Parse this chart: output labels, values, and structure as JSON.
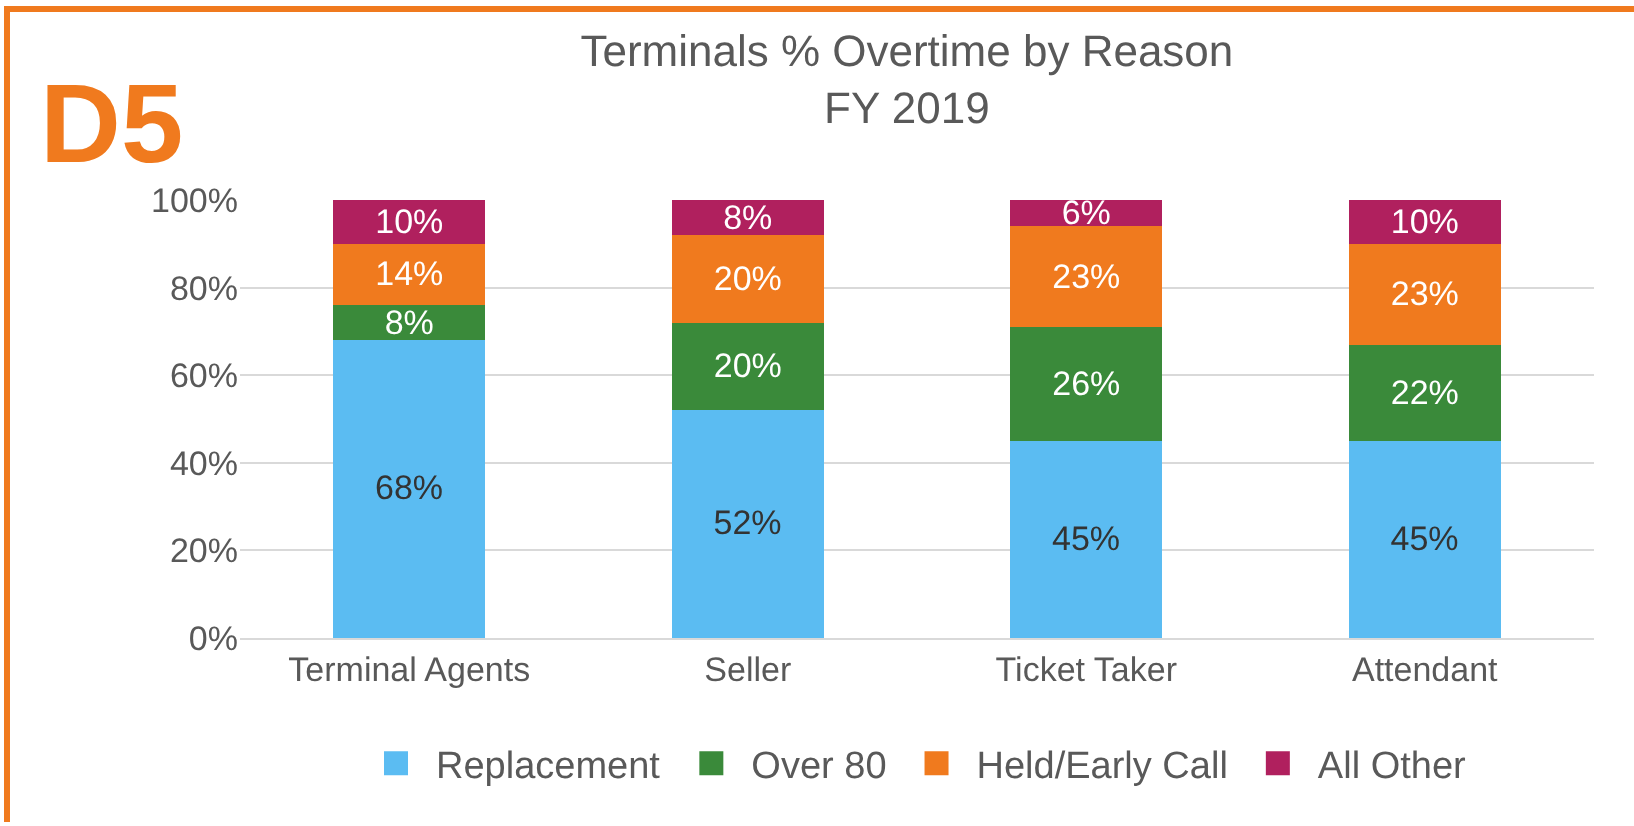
{
  "chart_data": {
    "type": "bar",
    "stacked": true,
    "title": "Terminals % Overtime by Reason",
    "subtitle": "FY 2019",
    "annotations": [
      "D5"
    ],
    "categories": [
      "Terminal Agents",
      "Seller",
      "Ticket Taker",
      "Attendant"
    ],
    "series": [
      {
        "name": "Replacement",
        "color": "#5bbcf2",
        "values": [
          68,
          52,
          45,
          45
        ],
        "value_labels": [
          "68%",
          "52%",
          "45%",
          "45%"
        ]
      },
      {
        "name": "Over 80",
        "color": "#3a8a3a",
        "values": [
          8,
          20,
          26,
          22
        ],
        "value_labels": [
          "8%",
          "20%",
          "26%",
          "22%"
        ]
      },
      {
        "name": "Held/Early Call",
        "color": "#f07a1e",
        "values": [
          14,
          20,
          23,
          23
        ],
        "value_labels": [
          "14%",
          "20%",
          "23%",
          "23%"
        ]
      },
      {
        "name": "All Other",
        "color": "#b0205e",
        "values": [
          10,
          8,
          6,
          10
        ],
        "value_labels": [
          "10%",
          "8%",
          "6%",
          "10%"
        ]
      }
    ],
    "ylim": [
      0,
      100
    ],
    "yticks": [
      {
        "value": 0,
        "label": "0%"
      },
      {
        "value": 20,
        "label": "20%"
      },
      {
        "value": 40,
        "label": "40%"
      },
      {
        "value": 60,
        "label": "60%"
      },
      {
        "value": 80,
        "label": "80%"
      },
      {
        "value": 100,
        "label": "100%"
      }
    ],
    "grid": "y",
    "legend": "bottom"
  }
}
